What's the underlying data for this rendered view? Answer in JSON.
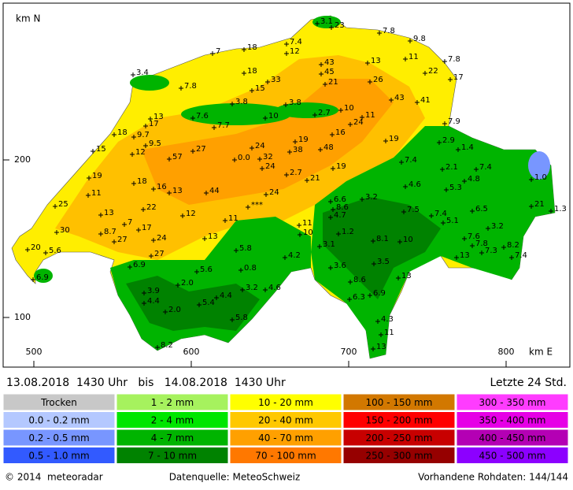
{
  "map": {
    "y_label": "km N",
    "x_label": "km E",
    "yticks": [
      200,
      100
    ],
    "xticks": [
      500,
      600,
      700,
      800
    ],
    "stations": [
      "3.1",
      "23",
      "7.8",
      "9.8",
      "7.4",
      "12",
      "18",
      "7",
      "11",
      "7.8",
      "13",
      "43",
      "45",
      "22",
      "17",
      "3.4",
      "18",
      "33",
      "21",
      "26",
      "15",
      "7.8",
      "43",
      "41",
      "3.8",
      "3.8",
      "13",
      "7.6",
      "10",
      "2.7",
      "10",
      "11",
      "24",
      "7.9",
      "17",
      "7.7",
      "16",
      "18",
      "9.7",
      "19",
      "19",
      "2.9",
      "9.5",
      "27",
      "24",
      "38",
      "48",
      "15",
      "12",
      "1.4",
      "57",
      "0.0",
      "32",
      "7.4",
      "24",
      "2.1",
      "7.4",
      "19",
      "1.0",
      "2.7",
      "19",
      "21",
      "4.8",
      "18",
      "4.6",
      "16",
      "5.3",
      "13",
      "44",
      "24",
      "11",
      "3.2",
      "6.6",
      "21",
      "1.3",
      "25",
      "22",
      "8.6",
      "***",
      "7.5",
      "7.4",
      "6.5",
      "13",
      "12",
      "4.7",
      "5.1",
      "7",
      "11",
      "11",
      "17",
      "3.2",
      "30",
      "8.7",
      "1.2",
      "10",
      "13",
      "24",
      "27",
      "8.1",
      "10",
      "7.6",
      "7.8",
      "7.3",
      "8.2",
      "20",
      "5.6",
      "3.1",
      "5.8",
      "27",
      "4.2",
      "13",
      "7.4",
      "3.5",
      "6.9",
      "3.6",
      "0.8",
      "5.6",
      "6.9",
      "8.6",
      "13",
      "2.0",
      "4.6",
      "3.2",
      "3.9",
      "6.3",
      "6.9",
      "4.4",
      "4.4",
      "5.4",
      "2.0",
      "5.8",
      "4.3",
      "11",
      "8.2",
      "13"
    ]
  },
  "header": {
    "period": "13.08.2018  1430 Uhr   bis   14.08.2018  1430 Uhr",
    "window": "Letzte 24 Std."
  },
  "legend": [
    [
      {
        "label": "Trocken",
        "color": "#c8c8c8"
      },
      {
        "label": "1 - 2 mm",
        "color": "#a6f25e"
      },
      {
        "label": "10 - 20 mm",
        "color": "#ffff00"
      },
      {
        "label": "100 - 150 mm",
        "color": "#d27800"
      },
      {
        "label": "300 - 350 mm",
        "color": "#ff3cff"
      }
    ],
    [
      {
        "label": "0.0 - 0.2 mm",
        "color": "#b4c8ff"
      },
      {
        "label": "2 - 4 mm",
        "color": "#00e600"
      },
      {
        "label": "20 - 40 mm",
        "color": "#ffc800"
      },
      {
        "label": "150 - 200 mm",
        "color": "#ff0000"
      },
      {
        "label": "350 - 400 mm",
        "color": "#e600e6"
      }
    ],
    [
      {
        "label": "0.2 - 0.5 mm",
        "color": "#7896ff"
      },
      {
        "label": "4 - 7 mm",
        "color": "#00b400"
      },
      {
        "label": "40 - 70 mm",
        "color": "#ffa000"
      },
      {
        "label": "200 - 250 mm",
        "color": "#c80000"
      },
      {
        "label": "400 - 450 mm",
        "color": "#b400b4"
      }
    ],
    [
      {
        "label": "0.5 - 1.0 mm",
        "color": "#325aff"
      },
      {
        "label": "7 - 10 mm",
        "color": "#008200"
      },
      {
        "label": "70 - 100 mm",
        "color": "#ff7800"
      },
      {
        "label": "250 - 300 mm",
        "color": "#960000"
      },
      {
        "label": "450 - 500 mm",
        "color": "#8c00ff"
      }
    ]
  ],
  "footer": {
    "copyright": "© 2014  meteoradar",
    "source": "Datenquelle: MeteoSchweiz",
    "raw": "Vorhandene Rohdaten: 144/144"
  }
}
